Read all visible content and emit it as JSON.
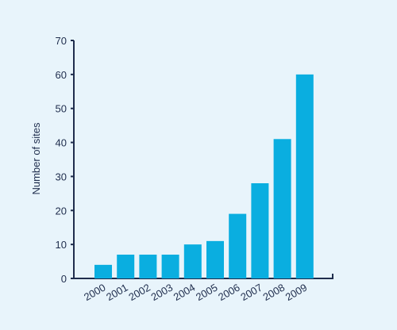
{
  "chart_data": {
    "type": "bar",
    "categories": [
      "2000",
      "2001",
      "2002",
      "2003",
      "2004",
      "2005",
      "2006",
      "2007",
      "2008",
      "2009"
    ],
    "values": [
      4,
      7,
      7,
      7,
      10,
      11,
      19,
      28,
      41,
      60
    ],
    "title": "",
    "xlabel": "",
    "ylabel": "Number of sites",
    "ylim": [
      0,
      70
    ],
    "yticks": [
      0,
      10,
      20,
      30,
      40,
      50,
      60,
      70
    ],
    "grid": false,
    "bar_color": "#0aaee0",
    "axis_color": "#1f2d4d"
  }
}
